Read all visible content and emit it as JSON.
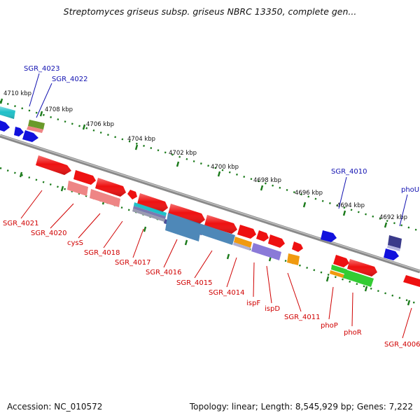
{
  "title": "Streptomyces griseus subsp. griseus NBRC 13350, complete gen...",
  "footer": {
    "accession": "Accession: NC_010572",
    "stats": "Topology: linear; Length: 8,545,929 bp; Genes: 7,222"
  },
  "colors": {
    "backbone": "#8a8a8a",
    "tick": "#1a7a1a",
    "label_top": "#1010b0",
    "label_bottom": "#d00000",
    "red": "#ee1111",
    "pink": "#ee8585",
    "blue": "#1111dd",
    "cyan": "#20c0c8",
    "olive": "#6a9a2a",
    "purple": "#4a4a9a",
    "steel": "#4e88b8",
    "lavender": "#8a7ad8",
    "orange": "#f09a10",
    "green": "#33cc33",
    "darkpurple": "#3a3a8a"
  },
  "scale_labels": [
    "4710 kbp",
    "4708 kbp",
    "4706 kbp",
    "4704 kbp",
    "4702 kbp",
    "4700 kbp",
    "4698 kbp",
    "4696 kbp",
    "4694 kbp",
    "4692 kbp"
  ],
  "top_labels": [
    "SGR_4023",
    "SGR_4022",
    "SGR_4010",
    "phoU"
  ],
  "bottom_labels": [
    "SGR_4021",
    "SGR_4020",
    "cysS",
    "SGR_4018",
    "SGR_4017",
    "SGR_4016",
    "SGR_4015",
    "SGR_4014",
    "ispF",
    "ispD",
    "SGR_4011",
    "phoP",
    "phoR",
    "SGR_4006"
  ]
}
